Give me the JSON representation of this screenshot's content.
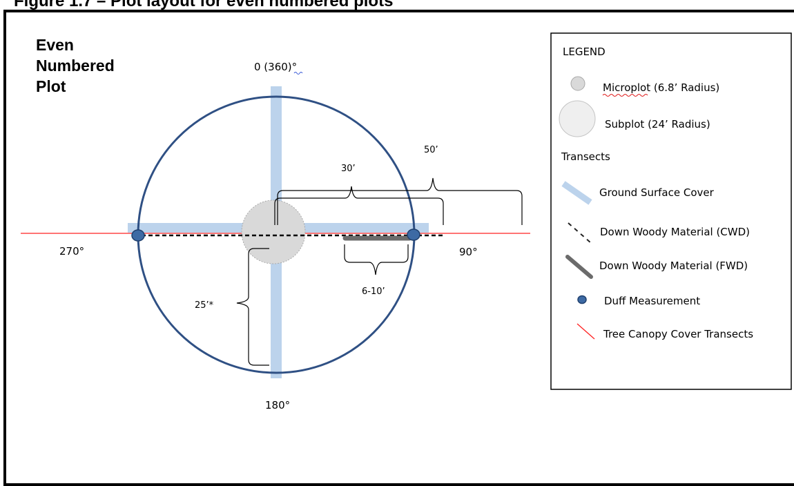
{
  "figure_caption": "Figure 1.7 – Plot layout for even numbered plots",
  "plot_label": [
    "Even",
    "Numbered",
    "Plot"
  ],
  "azimuths": {
    "north": "0 (360)°",
    "east": "90°",
    "south": "180°",
    "west": "270°"
  },
  "distances": {
    "d30": "30’",
    "d50": "50’",
    "d25": "25’*",
    "d6_10": "6-10’"
  },
  "legend": {
    "title": "LEGEND",
    "microplot": "Microplot (6.8’ Radius)",
    "subplot": "Subplot (24’ Radius)",
    "transects_heading": "Transects",
    "ground_cover": "Ground Surface Cover",
    "cwd": "Down Woody Material (CWD)",
    "fwd": "Down Woody Material (FWD)",
    "duff": "Duff Measurement",
    "canopy": "Tree Canopy Cover Transects"
  },
  "colors": {
    "subplot_circle": "#2f5084",
    "ground_cover": "#bcd3ec",
    "canopy_line": "#ff2020",
    "duff_point": "#3d6aa4",
    "microplot_fill": "#d9d9d9",
    "fwd_line": "#6b6b6b"
  }
}
